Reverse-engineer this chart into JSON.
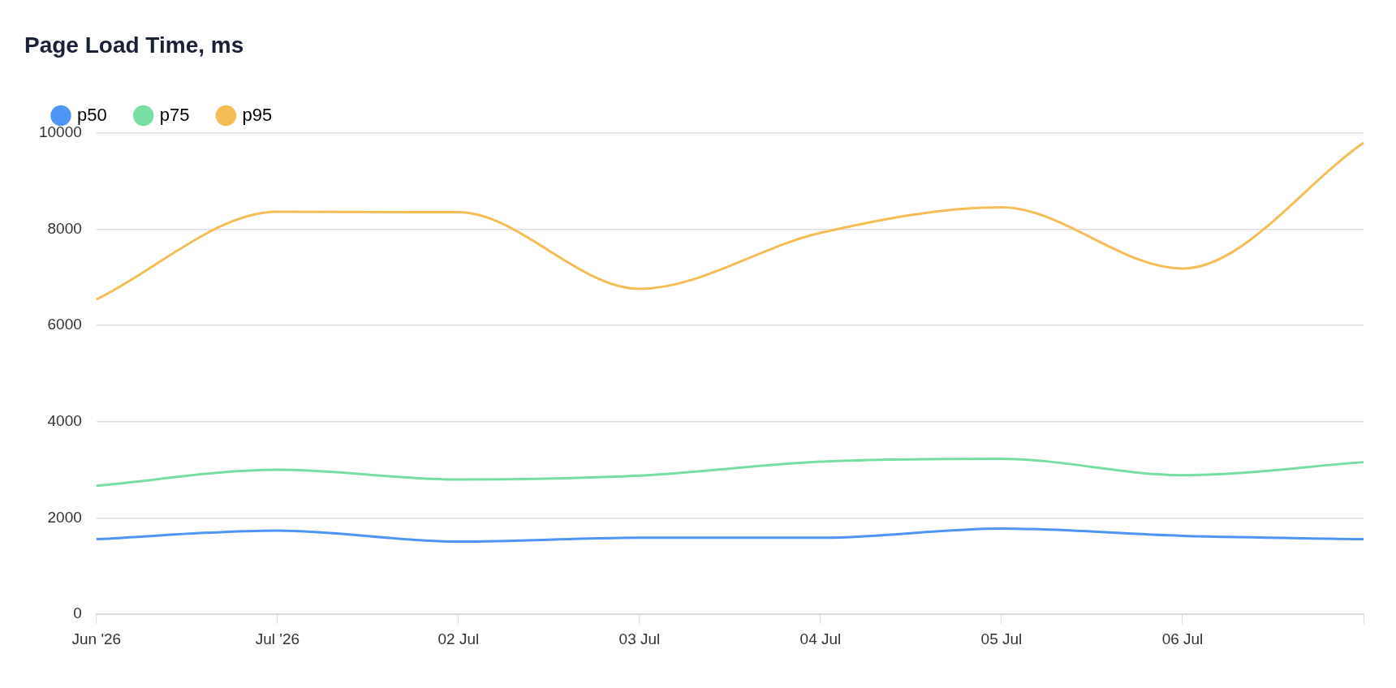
{
  "chart_data": {
    "type": "line",
    "title": "Page Load Time, ms",
    "categories": [
      "Jun '26",
      "Jul '26",
      "02 Jul",
      "03 Jul",
      "04 Jul",
      "05 Jul",
      "06 Jul",
      null
    ],
    "series": [
      {
        "name": "p50",
        "color": "#4f94f7",
        "values": [
          1560,
          1740,
          1510,
          1590,
          1590,
          1780,
          1630,
          1560
        ]
      },
      {
        "name": "p75",
        "color": "#79dea4",
        "values": [
          2670,
          3000,
          2800,
          2880,
          3170,
          3230,
          2890,
          3160
        ]
      },
      {
        "name": "p95",
        "color": "#f5bd55",
        "values": [
          6540,
          8360,
          8350,
          6760,
          7920,
          8450,
          7180,
          9790
        ]
      }
    ],
    "ylim": [
      0,
      10000
    ],
    "yticks": [
      0,
      2000,
      4000,
      6000,
      8000,
      10000
    ],
    "grid": "y",
    "legend": "top left",
    "marker": "none",
    "line_style": "solid"
  }
}
